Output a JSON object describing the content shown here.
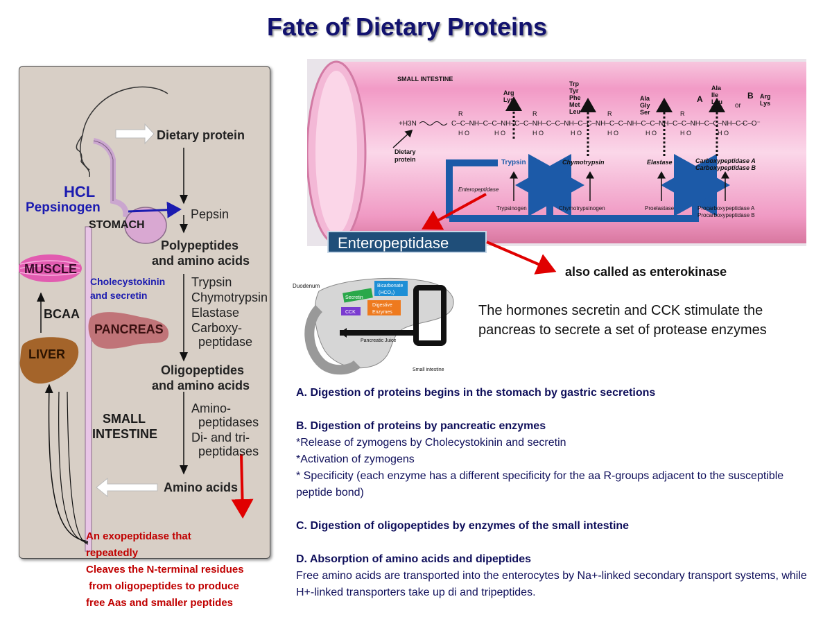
{
  "title": "Fate of Dietary Proteins",
  "left": {
    "dietary_protein": "Dietary protein",
    "hcl": "HCL",
    "pepsinogen": "Pepsinogen",
    "stomach": "STOMACH",
    "pepsin": "Pepsin",
    "polypeptides": [
      "Polypeptides",
      "and amino acids"
    ],
    "muscle": "MUSCLE",
    "cck_secretin": [
      "Cholecystokinin",
      "and secretin"
    ],
    "enzymes": [
      "Trypsin",
      "Chymotrypsin",
      "Elastase",
      "Carboxy-",
      "  peptidase"
    ],
    "pancreas": "PANCREAS",
    "bcaa": "BCAA",
    "liver": "LIVER",
    "oligopeptides": [
      "Oligopeptides",
      "and amino acids"
    ],
    "small_intestine": [
      "SMALL",
      "INTESTINE"
    ],
    "intestine_enzymes": [
      "Amino-",
      "  peptidases",
      "Di- and tri-",
      "  peptidases"
    ],
    "amino_acids": "Amino acids",
    "red_note": [
      "An exopeptidase that",
      "repeatedly",
      "Cleaves the N-terminal residues",
      " from oligopeptides to produce",
      "free Aas and smaller peptides"
    ]
  },
  "intestine": {
    "title": "SMALL INTESTINE",
    "dietary_protein": [
      "Dietary",
      "protein"
    ],
    "aa_groups": {
      "trypsin": [
        "Arg",
        "Lys"
      ],
      "chymo": [
        "Trp",
        "Tyr",
        "Phe",
        "Met",
        "Leu"
      ],
      "elastase": [
        "Ala",
        "Gly",
        "Ser"
      ],
      "carboxyA": [
        "Ala",
        "Ile",
        "Leu",
        "Val"
      ],
      "carboxyB": [
        "Arg",
        "Lys"
      ],
      "A": "A",
      "or": "or",
      "B": "B"
    },
    "active": [
      "Trypsin",
      "Chymotrypsin",
      "Elastase",
      "Carboxypeptidase A",
      "Carboxypeptidase B"
    ],
    "zymogens": [
      "Trypsinogen",
      "Chymotrypsinogen",
      "Proelastase",
      "Procarboxypeptidase A",
      "Procarboxypeptidase B"
    ],
    "enteropeptidase_small": "Enteropeptidase",
    "h3n": "+H3N",
    "chain_end": "C–O⁻"
  },
  "enteropeptidase_label": "Enteropeptidase",
  "enterokinase_note": "also called as enterokinase",
  "pancreas_fig": {
    "duodenum": "Duodenum",
    "secretin": "Secretin",
    "bicarbonate": [
      "Bicarbonate",
      "(HCO₃)"
    ],
    "cck": "CCK",
    "digestive": [
      "Digestive",
      "Enzymes"
    ],
    "juice": "Pancreatic Juice",
    "small_intestine": "Small intestine"
  },
  "hormone_text": "The hormones secretin and CCK stimulate the pancreas to secrete a set of protease enzymes",
  "steps": [
    {
      "head": "A. Digestion of proteins begins in the stomach by gastric secretions",
      "lines": []
    },
    {
      "head": "B. Digestion of proteins by pancreatic enzymes",
      "lines": [
        "*Release of zymogens by  Cholecystokinin and secretin",
        "*Activation of zymogens",
        "* Specificity (each enzyme has a different specificity for the aa R-groups adjacent to the susceptible peptide bond)"
      ]
    },
    {
      "head": "C. Digestion of oligopeptides by enzymes of the small intestine",
      "lines": []
    },
    {
      "head": "D. Absorption of amino acids and dipeptides",
      "lines": [
        "Free amino acids are transported into the enterocytes by Na+-linked secondary transport systems, while H+-linked transporters take up di and tripeptides."
      ]
    }
  ],
  "colors": {
    "title": "#12126e",
    "blue_label": "#1b1bb0",
    "red_note": "#c00000",
    "entero_box": "#1f4e79",
    "steps_text": "#0e0e5a",
    "intestine_pink": "#f1a3c8"
  }
}
